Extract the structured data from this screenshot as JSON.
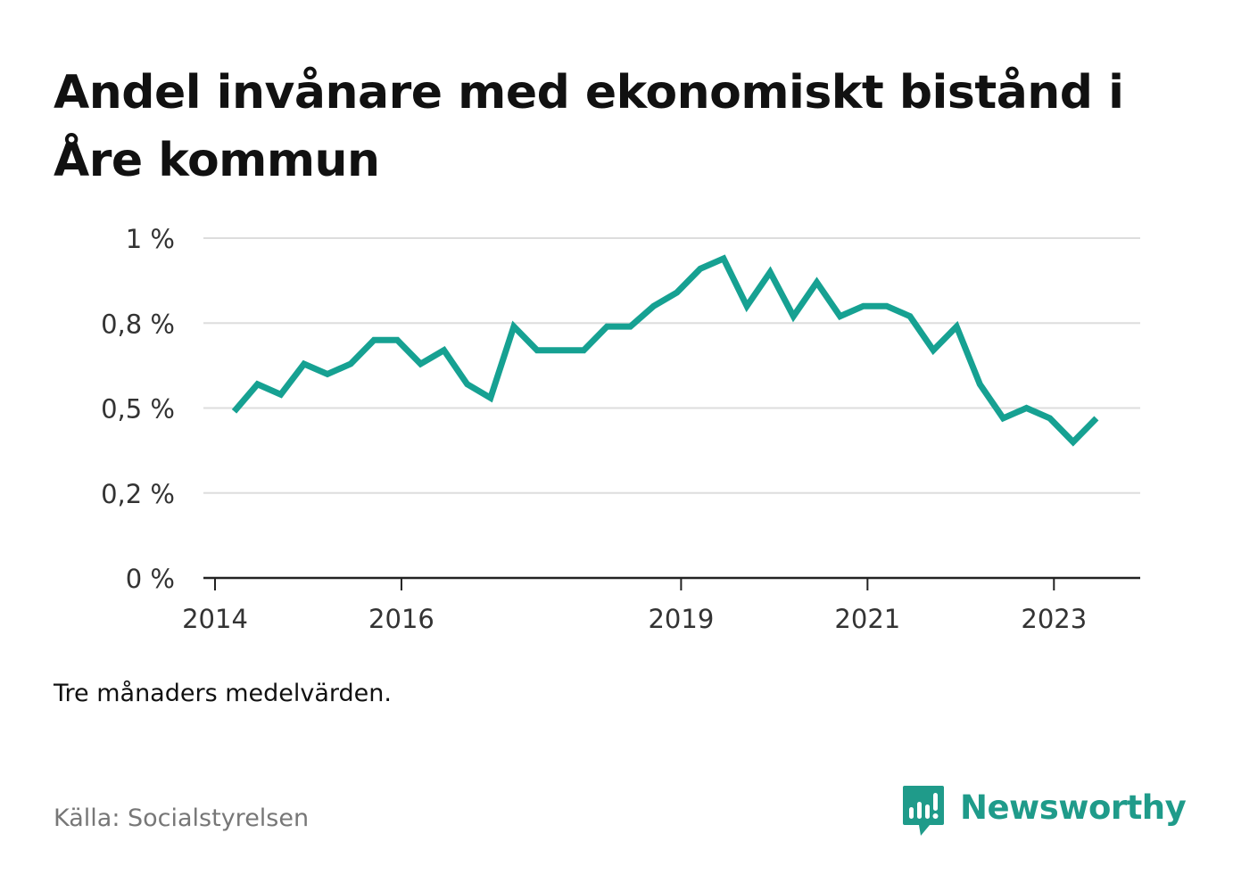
{
  "title": "Andel invånare med ekonomiskt bistånd i Åre kommun",
  "note": "Tre månaders medelvärden.",
  "source": "Källa: Socialstyrelsen",
  "brand": {
    "name": "Newsworthy",
    "icon": "newsworthy-logo-icon",
    "color": "#1f9b8a"
  },
  "colors": {
    "line": "#16a192",
    "grid": "#dddddd",
    "axis": "#222222"
  },
  "chart_data": {
    "type": "line",
    "title": "Andel invånare med ekonomiskt bistånd i Åre kommun",
    "xlabel": "",
    "ylabel": "",
    "xlim": [
      2014,
      2024.05
    ],
    "ylim": [
      0,
      1
    ],
    "yticks": [
      {
        "value": 0,
        "label": "0 %"
      },
      {
        "value": 0.25,
        "label": "0,2 %"
      },
      {
        "value": 0.5,
        "label": "0,5 %"
      },
      {
        "value": 0.75,
        "label": "0,8 %"
      },
      {
        "value": 1,
        "label": "1 %"
      }
    ],
    "xticks": [
      {
        "value": 2014,
        "label": "2014"
      },
      {
        "value": 2016,
        "label": "2016"
      },
      {
        "value": 2019,
        "label": "2019"
      },
      {
        "value": 2021,
        "label": "2021"
      },
      {
        "value": 2023,
        "label": "2023"
      }
    ],
    "grid": true,
    "series": [
      {
        "x": [
          2014.33,
          2014.58,
          2014.83,
          2015.08,
          2015.33,
          2015.58,
          2015.83,
          2016.08,
          2016.33,
          2016.58,
          2016.83,
          2017.08,
          2017.33,
          2017.58,
          2017.83,
          2018.08,
          2018.33,
          2018.58,
          2018.83,
          2019.08,
          2019.33,
          2019.58,
          2019.83,
          2020.08,
          2020.33,
          2020.58,
          2020.83,
          2021.08,
          2021.33,
          2021.58,
          2021.83,
          2022.08,
          2022.33,
          2022.58,
          2022.83,
          2023.08,
          2023.33,
          2023.58
        ],
        "y": [
          0.49,
          0.57,
          0.54,
          0.63,
          0.6,
          0.63,
          0.7,
          0.7,
          0.63,
          0.67,
          0.57,
          0.53,
          0.74,
          0.67,
          0.67,
          0.67,
          0.74,
          0.74,
          0.8,
          0.84,
          0.91,
          0.94,
          0.8,
          0.9,
          0.77,
          0.87,
          0.77,
          0.8,
          0.8,
          0.77,
          0.67,
          0.74,
          0.57,
          0.47,
          0.5,
          0.47,
          0.4,
          0.47
        ]
      }
    ]
  }
}
